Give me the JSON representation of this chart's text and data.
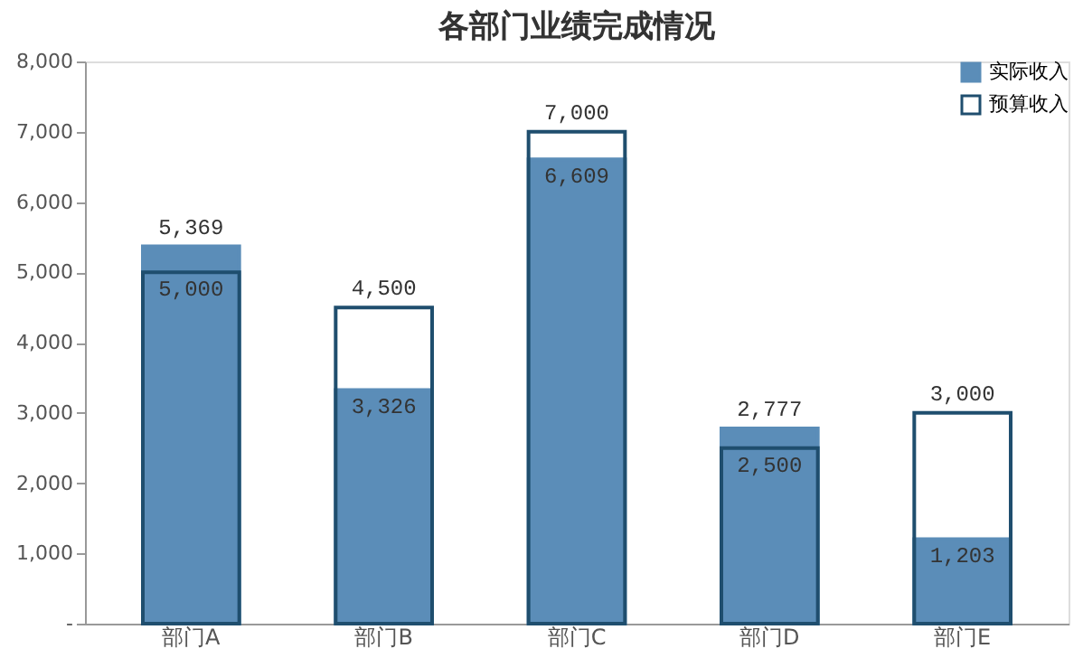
{
  "chart_data": {
    "type": "bar",
    "title": "各部门业绩完成情况",
    "categories": [
      "部门A",
      "部门B",
      "部门C",
      "部门D",
      "部门E"
    ],
    "series": [
      {
        "name": "实际收入",
        "color": "#5b8db8",
        "values": [
          5369,
          3326,
          6609,
          2777,
          1203
        ],
        "value_labels": [
          "5,369",
          "3,326",
          "6,609",
          "2,777",
          "1,203"
        ]
      },
      {
        "name": "预算收入",
        "color": "#1f4e6e",
        "values": [
          5000,
          4500,
          7000,
          2500,
          3000
        ],
        "value_labels": [
          "5,000",
          "4,500",
          "7,000",
          "2,500",
          "3,000"
        ]
      }
    ],
    "ylim": [
      0,
      8000
    ],
    "yticks": [
      {
        "value": 0,
        "label": "-"
      },
      {
        "value": 1000,
        "label": "1,000"
      },
      {
        "value": 2000,
        "label": "2,000"
      },
      {
        "value": 3000,
        "label": "3,000"
      },
      {
        "value": 4000,
        "label": "4,000"
      },
      {
        "value": 5000,
        "label": "5,000"
      },
      {
        "value": 6000,
        "label": "6,000"
      },
      {
        "value": 7000,
        "label": "7,000"
      },
      {
        "value": 8000,
        "label": "8,000"
      }
    ],
    "grid": false,
    "legend": "top right"
  }
}
